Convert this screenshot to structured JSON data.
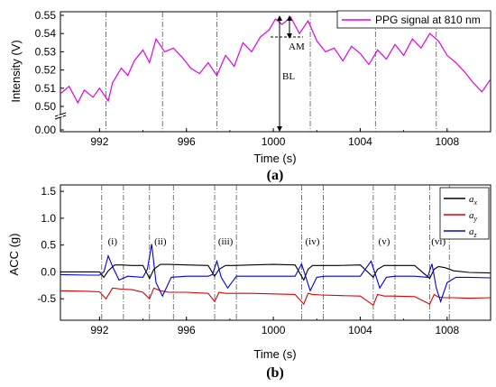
{
  "colors": {
    "ppg": "#e600e6",
    "ax": "#000000",
    "ay": "#e00000",
    "az": "#0000e6",
    "vline": "#555555"
  },
  "chart_data": [
    {
      "type": "line",
      "panel_label": "(a)",
      "xlabel": "Time (s)",
      "ylabel": "Intensity (V)",
      "xlim": [
        990.2,
        1010
      ],
      "x_ticks": [
        "992",
        "996",
        "1000",
        "1004",
        "1008"
      ],
      "y_ticks": [
        "0.00",
        "0.50",
        "0.51",
        "0.52",
        "0.53",
        "0.54",
        "0.55"
      ],
      "y_axis_break": true,
      "ylim_upper": [
        0.497,
        0.55
      ],
      "series": [
        {
          "name": "PPG signal at 810 nm",
          "x": [
            990.2,
            990.6,
            991.0,
            991.3,
            991.7,
            992.0,
            992.4,
            992.6,
            993.0,
            993.3,
            993.6,
            994.0,
            994.3,
            994.6,
            995.0,
            995.4,
            995.8,
            996.2,
            996.6,
            997.0,
            997.4,
            997.8,
            998.2,
            998.6,
            999.0,
            999.4,
            999.8,
            1000.1,
            1000.4,
            1000.8,
            1001.2,
            1001.6,
            1002.0,
            1002.4,
            1002.8,
            1003.2,
            1003.6,
            1004.0,
            1004.4,
            1004.8,
            1005.2,
            1005.6,
            1006.0,
            1006.4,
            1006.8,
            1007.2,
            1007.6,
            1008.0,
            1008.4,
            1008.8,
            1009.2,
            1009.6,
            1010.0
          ],
          "y": [
            0.507,
            0.511,
            0.502,
            0.509,
            0.505,
            0.51,
            0.503,
            0.513,
            0.521,
            0.517,
            0.525,
            0.531,
            0.524,
            0.537,
            0.53,
            0.532,
            0.527,
            0.521,
            0.518,
            0.524,
            0.517,
            0.528,
            0.522,
            0.535,
            0.53,
            0.538,
            0.542,
            0.548,
            0.545,
            0.549,
            0.54,
            0.547,
            0.536,
            0.53,
            0.532,
            0.525,
            0.533,
            0.529,
            0.523,
            0.531,
            0.526,
            0.534,
            0.528,
            0.537,
            0.532,
            0.54,
            0.536,
            0.528,
            0.524,
            0.519,
            0.513,
            0.508,
            0.515
          ]
        }
      ],
      "vlines": [
        992.3,
        994.9,
        997.4,
        1001.7,
        1004.7,
        1007.5
      ],
      "annotations": {
        "am": "AM",
        "bl": "BL"
      }
    },
    {
      "type": "line",
      "panel_label": "(b)",
      "xlabel": "Time (s)",
      "ylabel": "ACC (g)",
      "xlim": [
        990.2,
        1010
      ],
      "ylim": [
        -0.9,
        1.62
      ],
      "x_ticks": [
        "992",
        "996",
        "1000",
        "1004",
        "1008"
      ],
      "y_ticks": [
        "-0.5",
        "0.0",
        "0.5",
        "1.0",
        "1.5"
      ],
      "vlines": [
        992.1,
        993.1,
        994.3,
        995.4,
        997.3,
        998.3,
        1001.3,
        1002.3,
        1004.6,
        1005.6,
        1007.2,
        1008.1
      ],
      "segment_labels": [
        "(i)",
        "(ii)",
        "(iii)",
        "(iv)",
        "(v)",
        "(vi)"
      ],
      "segment_centers": [
        992.6,
        994.8,
        997.8,
        1001.8,
        1005.1,
        1007.6
      ],
      "series": [
        {
          "name": "a",
          "sub": "x",
          "x": [
            990.2,
            991.5,
            992.0,
            992.2,
            992.4,
            992.7,
            993.0,
            993.5,
            994.0,
            994.3,
            994.5,
            994.8,
            995.2,
            996.0,
            997.0,
            997.3,
            997.5,
            997.8,
            998.2,
            999.0,
            1000.0,
            1001.0,
            1001.4,
            1001.6,
            1001.8,
            1002.2,
            1003.0,
            1004.0,
            1004.6,
            1004.8,
            1005.1,
            1005.5,
            1006.5,
            1007.2,
            1007.4,
            1007.6,
            1007.9,
            1008.3,
            1009.0,
            1010.0
          ],
          "y": [
            0.0,
            0.0,
            0.0,
            -0.1,
            0.02,
            0.13,
            0.13,
            0.12,
            0.12,
            -0.12,
            0.05,
            0.14,
            0.14,
            0.13,
            0.12,
            -0.08,
            0.05,
            0.12,
            0.12,
            0.13,
            0.14,
            0.13,
            -0.15,
            0.05,
            0.12,
            0.12,
            0.12,
            0.13,
            -0.1,
            0.05,
            0.12,
            0.12,
            0.12,
            -0.12,
            0.05,
            0.1,
            0.08,
            0.02,
            -0.01,
            -0.02
          ]
        },
        {
          "name": "a",
          "sub": "y",
          "x": [
            990.2,
            991.5,
            992.0,
            992.3,
            992.6,
            993.0,
            993.5,
            994.0,
            994.3,
            994.5,
            994.8,
            995.2,
            996.0,
            997.0,
            997.3,
            997.5,
            997.8,
            998.2,
            999.0,
            1000.0,
            1001.0,
            1001.4,
            1001.6,
            1001.8,
            1002.2,
            1003.0,
            1004.0,
            1004.6,
            1004.8,
            1005.1,
            1005.5,
            1006.5,
            1007.2,
            1007.4,
            1007.6,
            1007.9,
            1008.3,
            1009.0,
            1010.0
          ],
          "y": [
            -0.35,
            -0.36,
            -0.37,
            -0.5,
            -0.3,
            -0.32,
            -0.33,
            -0.38,
            -0.5,
            -0.3,
            -0.35,
            -0.38,
            -0.38,
            -0.4,
            -0.55,
            -0.38,
            -0.4,
            -0.4,
            -0.4,
            -0.41,
            -0.42,
            -0.6,
            -0.4,
            -0.42,
            -0.43,
            -0.44,
            -0.45,
            -0.62,
            -0.42,
            -0.45,
            -0.45,
            -0.46,
            -0.6,
            -0.42,
            -0.47,
            -0.48,
            -0.48,
            -0.49,
            -0.48
          ]
        },
        {
          "name": "a",
          "sub": "z",
          "x": [
            990.2,
            991.5,
            992.0,
            992.2,
            992.4,
            992.6,
            992.9,
            993.3,
            994.0,
            994.2,
            994.4,
            994.6,
            994.9,
            995.3,
            996.0,
            997.0,
            997.2,
            997.4,
            997.6,
            997.9,
            998.3,
            999.0,
            1000.0,
            1001.0,
            1001.3,
            1001.5,
            1001.7,
            1002.0,
            1002.4,
            1003.0,
            1004.0,
            1004.5,
            1004.7,
            1004.9,
            1005.2,
            1005.6,
            1006.5,
            1007.1,
            1007.3,
            1007.5,
            1007.7,
            1008.0,
            1008.4,
            1009.0,
            1010.0
          ],
          "y": [
            -0.05,
            -0.06,
            -0.06,
            0.0,
            0.3,
            0.1,
            -0.15,
            -0.08,
            -0.1,
            0.05,
            0.52,
            -0.2,
            -0.45,
            -0.1,
            -0.08,
            -0.08,
            -0.05,
            0.2,
            -0.1,
            -0.3,
            -0.08,
            -0.08,
            -0.08,
            -0.08,
            0.15,
            -0.1,
            -0.35,
            -0.1,
            -0.08,
            -0.08,
            -0.08,
            0.2,
            -0.05,
            -0.3,
            -0.1,
            -0.08,
            -0.08,
            -0.1,
            0.15,
            -0.3,
            -0.55,
            -0.2,
            -0.1,
            -0.1,
            -0.11
          ]
        }
      ]
    }
  ]
}
